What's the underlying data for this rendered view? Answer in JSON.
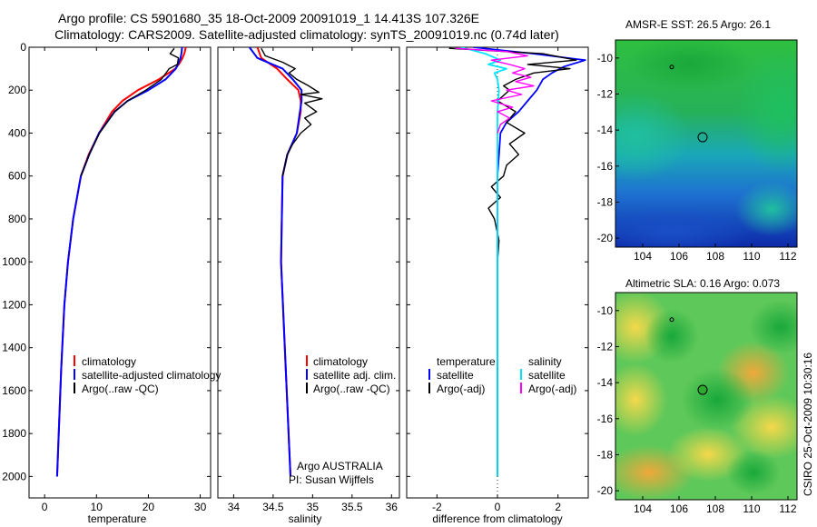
{
  "title": {
    "line1": "Argo profile: CS 5901680_35 18-Oct-2009 20091019_1 14.413S 107.326E",
    "line2": "Climatology: CARS2009. Satellite-adjusted climatology: synTS_20091019.nc (0.74d later)"
  },
  "side_stamp": "CSIRO 25-Oct-2009 10:30:16",
  "colors": {
    "climatology": "#ff0000",
    "satellite": "#0000ff",
    "argo": "#000000",
    "sal_satellite": "#00e5ff",
    "sal_argo": "#ff00ff",
    "map_marker": "#2eaa2e"
  },
  "chart_data": [
    {
      "type": "line",
      "panel": "temperature",
      "xlabel": "temperature",
      "ylabel": "",
      "xlim": [
        -3,
        32
      ],
      "ylim": [
        2100,
        0
      ],
      "xticks": [
        0,
        10,
        20,
        30
      ],
      "yticks": [
        0,
        200,
        400,
        600,
        800,
        1000,
        1200,
        1400,
        1600,
        1800,
        2000
      ],
      "legend_entries": [
        "climatology",
        "satellite-adjusted climatology",
        "Argo(..raw -QC)"
      ],
      "series": [
        {
          "name": "climatology",
          "depth": [
            0,
            25,
            50,
            75,
            100,
            150,
            200,
            250,
            300,
            400,
            500,
            600,
            800,
            1000,
            1200,
            1500,
            2000
          ],
          "values": [
            27.2,
            27.0,
            26.6,
            26.0,
            25.2,
            22.0,
            18.0,
            15.0,
            13.0,
            10.5,
            8.5,
            7.0,
            5.5,
            4.5,
            3.8,
            3.2,
            2.4
          ]
        },
        {
          "name": "satellite-adjusted climatology",
          "depth": [
            0,
            25,
            50,
            75,
            100,
            150,
            200,
            250,
            300,
            400,
            500,
            600,
            800,
            1000,
            1200,
            1500,
            2000
          ],
          "values": [
            26.5,
            26.4,
            26.2,
            25.8,
            25.3,
            23.3,
            20.0,
            16.0,
            13.5,
            10.5,
            8.6,
            7.0,
            5.5,
            4.5,
            3.8,
            3.2,
            2.4
          ]
        },
        {
          "name": "Argo(..raw -QC)",
          "depth": [
            5,
            30,
            50,
            80,
            100,
            150,
            200,
            250,
            300,
            400,
            500,
            600
          ],
          "values": [
            25.0,
            24.2,
            25.8,
            25.6,
            24.0,
            22.5,
            19.5,
            16.0,
            13.5,
            10.6,
            8.6,
            7.0
          ]
        }
      ]
    },
    {
      "type": "line",
      "panel": "salinity",
      "xlabel": "salinity",
      "ylabel": "",
      "xlim": [
        33.8,
        36.1
      ],
      "ylim": [
        2100,
        0
      ],
      "xticks": [
        34,
        34.5,
        35,
        35.5,
        36
      ],
      "legend_entries": [
        "climatology",
        "satellite adj. clim.",
        "Argo(..raw -QC)"
      ],
      "annotation_line1": "Argo AUSTRALIA",
      "annotation_line2": "PI: Susan Wijffels",
      "series": [
        {
          "name": "climatology",
          "depth": [
            0,
            50,
            100,
            150,
            200,
            250,
            300,
            400,
            500,
            600,
            1000,
            1500,
            2000
          ],
          "values": [
            34.3,
            34.35,
            34.55,
            34.68,
            34.82,
            34.85,
            34.85,
            34.8,
            34.68,
            34.62,
            34.6,
            34.66,
            34.72
          ]
        },
        {
          "name": "satellite adj. clim.",
          "depth": [
            0,
            50,
            100,
            150,
            200,
            250,
            300,
            400,
            500,
            600,
            1000,
            1500,
            2000
          ],
          "values": [
            34.2,
            34.3,
            34.62,
            34.75,
            34.86,
            34.86,
            34.84,
            34.8,
            34.68,
            34.62,
            34.6,
            34.66,
            34.72
          ]
        },
        {
          "name": "Argo(..raw -QC)",
          "depth": [
            5,
            40,
            70,
            100,
            120,
            150,
            180,
            210,
            220,
            240,
            260,
            300,
            330,
            360,
            400,
            450,
            500,
            600
          ],
          "values": [
            34.35,
            34.4,
            34.62,
            34.78,
            34.7,
            34.8,
            34.95,
            35.08,
            34.85,
            35.12,
            34.9,
            35.05,
            34.9,
            34.98,
            34.85,
            34.75,
            34.68,
            34.62
          ]
        }
      ]
    },
    {
      "type": "line",
      "panel": "difference",
      "xlabel": "difference from climatology",
      "ylabel": "",
      "xlim": [
        -3,
        3
      ],
      "ylim": [
        2100,
        0
      ],
      "xticks": [
        -2,
        0,
        2
      ],
      "legend_group_1": "temperature",
      "legend_group_2": "salinity",
      "legend_entries": [
        "satellite",
        "Argo(-adj)",
        "satellite",
        "Argo(-adj)"
      ],
      "series": [
        {
          "name": "temperature satellite",
          "depth": [
            0,
            30,
            60,
            90,
            120,
            150,
            200,
            250,
            300,
            350,
            400,
            500,
            600,
            800,
            1000,
            2000
          ],
          "values": [
            -0.8,
            1.2,
            2.9,
            2.2,
            1.8,
            1.5,
            1.3,
            1.0,
            0.7,
            0.3,
            0.1,
            0.05,
            0.0,
            0.0,
            0.0,
            0.0
          ]
        },
        {
          "name": "temperature Argo(-adj)",
          "depth": [
            5,
            30,
            60,
            80,
            100,
            120,
            150,
            180,
            200,
            250,
            300,
            350,
            400,
            450,
            500,
            550,
            600,
            650,
            700,
            750,
            800,
            900,
            1000,
            2000
          ],
          "values": [
            -1.6,
            1.5,
            2.6,
            1.0,
            2.4,
            1.2,
            0.6,
            0.2,
            0.4,
            0.0,
            0.6,
            0.3,
            0.9,
            0.4,
            0.7,
            0.3,
            0.2,
            -0.2,
            0.1,
            -0.3,
            -0.1,
            0.05,
            0.0,
            0.0
          ]
        },
        {
          "name": "salinity satellite",
          "depth": [
            0,
            30,
            60,
            80,
            100,
            120,
            150,
            200,
            300,
            400,
            500,
            600,
            800,
            1000,
            2000
          ],
          "values": [
            -1.2,
            -0.4,
            0.1,
            -0.3,
            0.3,
            -0.1,
            0.0,
            0.05,
            0.0,
            0.0,
            0.0,
            0.0,
            0.0,
            0.0,
            0.0
          ]
        },
        {
          "name": "salinity Argo(-adj)",
          "depth": [
            5,
            20,
            40,
            60,
            80,
            100,
            120,
            140,
            160,
            180,
            200,
            220,
            250,
            280,
            300,
            330,
            360,
            400
          ],
          "values": [
            -1.4,
            0.3,
            1.0,
            -0.2,
            0.4,
            0.9,
            0.5,
            1.1,
            0.6,
            1.2,
            0.3,
            0.8,
            -0.2,
            0.5,
            0.0,
            0.4,
            0.1,
            0.0
          ]
        }
      ]
    },
    {
      "type": "heatmap",
      "panel": "map-sst",
      "title": "AMSR-E SST: 26.5 Argo: 26.1",
      "xlim": [
        102.5,
        112.5
      ],
      "ylim": [
        -20.5,
        -9
      ],
      "xticks": [
        104,
        106,
        108,
        110,
        112
      ],
      "yticks": [
        -10,
        -12,
        -14,
        -16,
        -18,
        -20
      ],
      "markers": [
        {
          "lon": 107.3,
          "lat": -14.4
        },
        {
          "lon": 105.6,
          "lat": -10.5
        }
      ]
    },
    {
      "type": "heatmap",
      "panel": "map-sla",
      "title": "Altimetric SLA: 0.16 Argo: 0.073",
      "xlim": [
        102.5,
        112.5
      ],
      "ylim": [
        -20.5,
        -9
      ],
      "xticks": [
        104,
        106,
        108,
        110,
        112
      ],
      "yticks": [
        -10,
        -12,
        -14,
        -16,
        -18,
        -20
      ],
      "markers": [
        {
          "lon": 107.3,
          "lat": -14.4
        },
        {
          "lon": 105.6,
          "lat": -10.5
        }
      ]
    }
  ]
}
